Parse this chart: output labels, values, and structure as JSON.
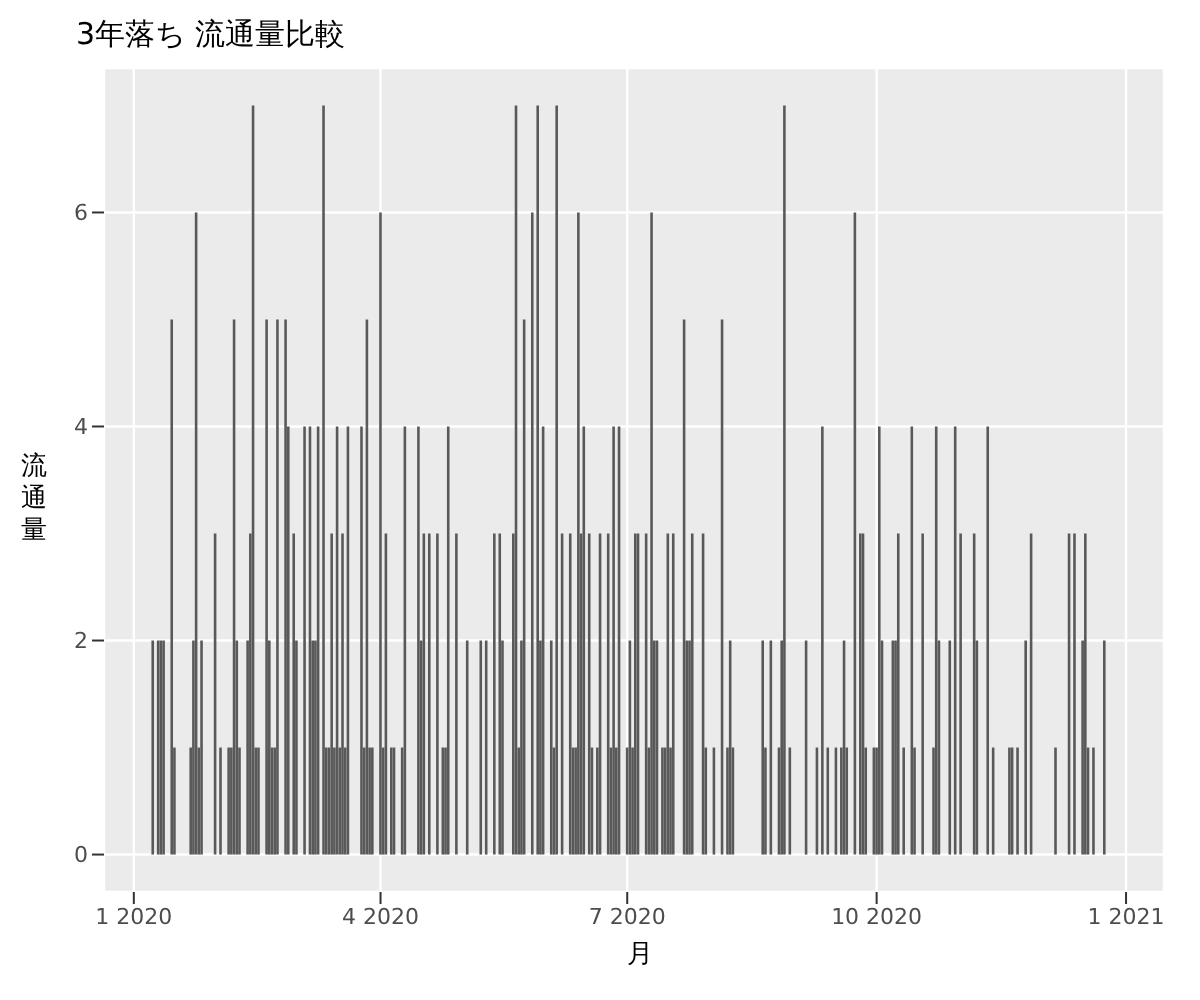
{
  "chart_data": {
    "type": "bar",
    "title": "3年落ち 流通量比較",
    "xlabel": "月",
    "ylabel": "流通量",
    "color": "#595959",
    "grid": true,
    "xlim": [
      "2019-12-21",
      "2021-01-15"
    ],
    "xticks": [
      {
        "value": "2020-01",
        "label": "1 2020"
      },
      {
        "value": "2020-04",
        "label": "4 2020"
      },
      {
        "value": "2020-07",
        "label": "7 2020"
      },
      {
        "value": "2020-10",
        "label": "10 2020"
      },
      {
        "value": "2021-01",
        "label": "1 2021"
      }
    ],
    "ylim": [
      -0.35,
      7.35
    ],
    "yticks": [
      0,
      2,
      4,
      6
    ],
    "x": [
      "2020-01-08",
      "2020-01-10",
      "2020-01-11",
      "2020-01-12",
      "2020-01-15",
      "2020-01-16",
      "2020-01-22",
      "2020-01-23",
      "2020-01-24",
      "2020-01-25",
      "2020-01-26",
      "2020-01-31",
      "2020-02-02",
      "2020-02-05",
      "2020-02-06",
      "2020-02-07",
      "2020-02-08",
      "2020-02-09",
      "2020-02-12",
      "2020-02-13",
      "2020-02-14",
      "2020-02-15",
      "2020-02-16",
      "2020-02-19",
      "2020-02-20",
      "2020-02-21",
      "2020-02-22",
      "2020-02-23",
      "2020-02-26",
      "2020-02-27",
      "2020-02-29",
      "2020-03-01",
      "2020-03-04",
      "2020-03-06",
      "2020-03-07",
      "2020-03-08",
      "2020-03-09",
      "2020-03-11",
      "2020-03-12",
      "2020-03-13",
      "2020-03-14",
      "2020-03-15",
      "2020-03-16",
      "2020-03-17",
      "2020-03-18",
      "2020-03-19",
      "2020-03-20",
      "2020-03-25",
      "2020-03-26",
      "2020-03-27",
      "2020-03-28",
      "2020-03-29",
      "2020-04-01",
      "2020-04-02",
      "2020-04-03",
      "2020-04-05",
      "2020-04-06",
      "2020-04-09",
      "2020-04-10",
      "2020-04-15",
      "2020-04-16",
      "2020-04-17",
      "2020-04-19",
      "2020-04-22",
      "2020-04-24",
      "2020-04-25",
      "2020-04-26",
      "2020-04-29",
      "2020-05-03",
      "2020-05-08",
      "2020-05-10",
      "2020-05-13",
      "2020-05-15",
      "2020-05-16",
      "2020-05-20",
      "2020-05-21",
      "2020-05-22",
      "2020-05-23",
      "2020-05-24",
      "2020-05-27",
      "2020-05-29",
      "2020-05-30",
      "2020-05-31",
      "2020-06-03",
      "2020-06-04",
      "2020-06-05",
      "2020-06-07",
      "2020-06-10",
      "2020-06-11",
      "2020-06-12",
      "2020-06-13",
      "2020-06-14",
      "2020-06-15",
      "2020-06-17",
      "2020-06-18",
      "2020-06-20",
      "2020-06-21",
      "2020-06-24",
      "2020-06-25",
      "2020-06-26",
      "2020-06-27",
      "2020-06-28",
      "2020-07-01",
      "2020-07-02",
      "2020-07-03",
      "2020-07-04",
      "2020-07-05",
      "2020-07-08",
      "2020-07-09",
      "2020-07-10",
      "2020-07-11",
      "2020-07-12",
      "2020-07-14",
      "2020-07-15",
      "2020-07-16",
      "2020-07-17",
      "2020-07-18",
      "2020-07-22",
      "2020-07-23",
      "2020-07-24",
      "2020-07-25",
      "2020-07-29",
      "2020-07-30",
      "2020-08-02",
      "2020-08-05",
      "2020-08-07",
      "2020-08-08",
      "2020-08-09",
      "2020-08-20",
      "2020-08-21",
      "2020-08-23",
      "2020-08-26",
      "2020-08-27",
      "2020-08-28",
      "2020-08-30",
      "2020-09-05",
      "2020-09-09",
      "2020-09-11",
      "2020-09-13",
      "2020-09-16",
      "2020-09-18",
      "2020-09-19",
      "2020-09-20",
      "2020-09-23",
      "2020-09-25",
      "2020-09-26",
      "2020-09-27",
      "2020-09-30",
      "2020-10-01",
      "2020-10-02",
      "2020-10-03",
      "2020-10-07",
      "2020-10-08",
      "2020-10-09",
      "2020-10-11",
      "2020-10-14",
      "2020-10-15",
      "2020-10-18",
      "2020-10-22",
      "2020-10-23",
      "2020-10-24",
      "2020-10-28",
      "2020-10-30",
      "2020-11-01",
      "2020-11-06",
      "2020-11-07",
      "2020-11-11",
      "2020-11-13",
      "2020-11-19",
      "2020-11-20",
      "2020-11-22",
      "2020-11-25",
      "2020-11-27",
      "2020-12-06",
      "2020-12-11",
      "2020-12-13",
      "2020-12-16",
      "2020-12-17",
      "2020-12-18",
      "2020-12-20",
      "2020-12-24"
    ],
    "values": [
      2,
      2,
      2,
      2,
      5,
      1,
      1,
      2,
      6,
      1,
      2,
      3,
      1,
      1,
      1,
      5,
      2,
      1,
      2,
      3,
      7,
      1,
      1,
      5,
      2,
      1,
      1,
      5,
      5,
      4,
      3,
      2,
      4,
      4,
      2,
      2,
      4,
      7,
      1,
      1,
      3,
      1,
      4,
      1,
      3,
      1,
      4,
      4,
      1,
      5,
      1,
      1,
      6,
      1,
      3,
      1,
      1,
      1,
      4,
      4,
      2,
      3,
      3,
      3,
      1,
      1,
      4,
      3,
      2,
      2,
      2,
      3,
      3,
      2,
      3,
      7,
      1,
      2,
      5,
      6,
      7,
      2,
      4,
      2,
      1,
      7,
      3,
      3,
      1,
      1,
      6,
      3,
      4,
      3,
      1,
      1,
      3,
      3,
      1,
      4,
      1,
      4,
      1,
      2,
      1,
      3,
      3,
      3,
      1,
      6,
      2,
      2,
      1,
      1,
      3,
      1,
      3,
      5,
      2,
      2,
      3,
      3,
      1,
      1,
      5,
      1,
      2,
      1,
      2,
      1,
      2,
      1,
      2,
      7,
      1,
      2,
      1,
      4,
      1,
      1,
      1,
      2,
      1,
      6,
      3,
      3,
      1,
      1,
      1,
      4,
      2,
      2,
      2,
      3,
      1,
      4,
      1,
      3,
      1,
      4,
      2,
      2,
      4,
      3,
      3,
      2,
      4,
      1,
      1,
      1,
      1,
      2,
      3,
      1,
      3,
      3,
      2,
      3,
      1,
      1,
      2
    ]
  }
}
